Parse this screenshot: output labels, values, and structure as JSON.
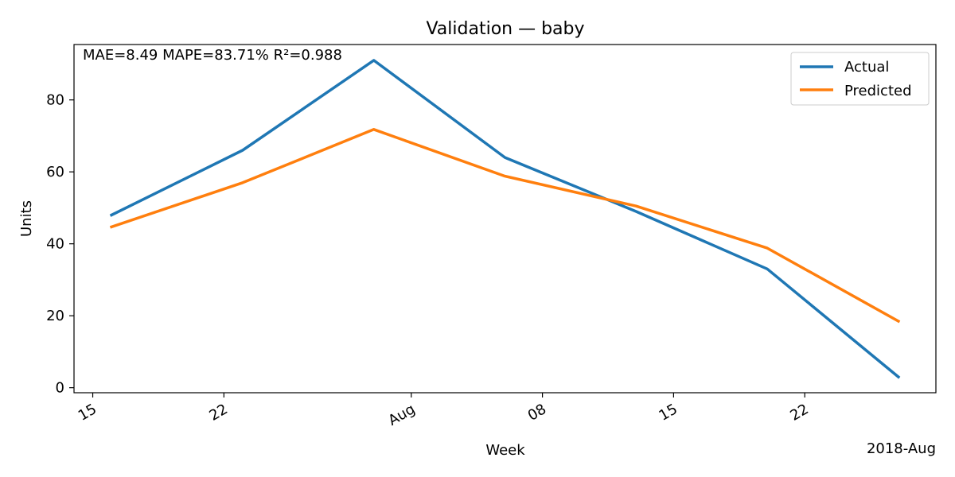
{
  "chart_data": {
    "type": "line",
    "title": "Validation — baby",
    "xlabel": "Week",
    "ylabel": "Units",
    "x_offset_label": "2018-Aug",
    "annotation": "MAE=8.49  MAPE=83.71%  R²=0.988",
    "x": [
      "2018-07-16",
      "2018-07-23",
      "2018-07-30",
      "2018-08-06",
      "2018-08-13",
      "2018-08-20",
      "2018-08-27"
    ],
    "series": [
      {
        "name": "Actual",
        "color": "#1f77b4",
        "values": [
          48,
          66,
          91,
          64,
          49,
          33,
          3
        ]
      },
      {
        "name": "Predicted",
        "color": "#ff7f0e",
        "values": [
          44.7,
          57,
          71.8,
          58.8,
          50.5,
          38.8,
          18.5
        ]
      }
    ],
    "x_ticks": [
      {
        "date": "2018-07-15",
        "label": "15"
      },
      {
        "date": "2018-07-22",
        "label": "22"
      },
      {
        "date": "2018-08-01",
        "label": "Aug"
      },
      {
        "date": "2018-08-08",
        "label": "08"
      },
      {
        "date": "2018-08-15",
        "label": "15"
      },
      {
        "date": "2018-08-22",
        "label": "22"
      }
    ],
    "y_ticks": [
      0,
      20,
      40,
      60,
      80
    ],
    "xlim": [
      "2018-07-14",
      "2018-08-29"
    ],
    "ylim": [
      -1.4,
      95.4
    ],
    "legend_position": "top-right",
    "grid": false
  }
}
